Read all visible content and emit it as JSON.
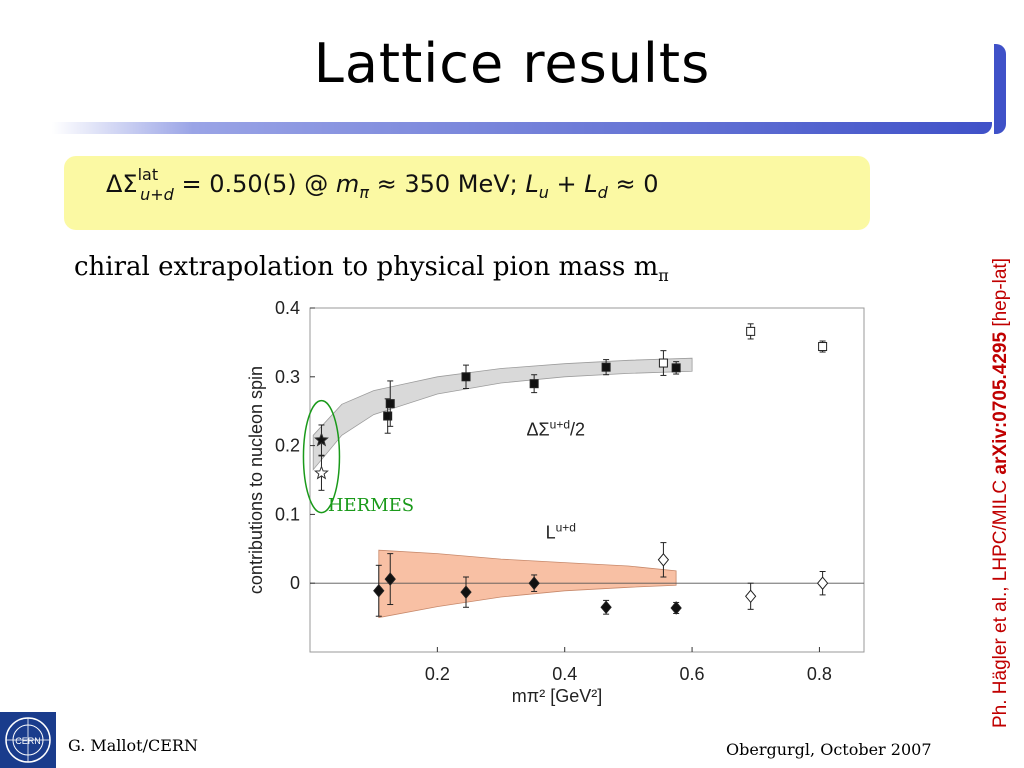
{
  "slide": {
    "title": "Lattice results",
    "formula": {
      "delta_sigma": "ΔΣ",
      "sup": "lat",
      "sub": "u+d",
      "value": "= 0.50(5) @",
      "m": "m",
      "m_sub": "π",
      "approx": "≈ 350 MeV;",
      "L1": "L",
      "L1_sub": "u",
      "plus": "+",
      "L2": "L",
      "L2_sub": "d",
      "tail": "≈ 0"
    },
    "subtitle": "chiral extrapolation to physical pion mass m",
    "subtitle_sub": "π",
    "side_ref": {
      "prefix": "Ph. Hägler et al., LHPC/MILC ",
      "arxiv": "arXiv:0705.4295",
      "suffix": " [hep-lat]"
    },
    "footer_left": "G. Mallot/CERN",
    "footer_right": "Obergurgl, October 2007",
    "logo_text": "CERN"
  },
  "colors": {
    "accent": "#3f51c8",
    "formula_bg": "#fbf9a3",
    "ref": "#c00000",
    "band_sigma": "#d9d9d9",
    "band_L": "#f8c0a4",
    "hermes": "#1a9a1a"
  },
  "chart_data": {
    "type": "scatter",
    "xlabel": "mπ² [GeV²]",
    "ylabel": "contributions to nucleon spin",
    "xlim": [
      0,
      0.87
    ],
    "ylim": [
      -0.1,
      0.4
    ],
    "x_ticks": [
      0.2,
      0.4,
      0.6,
      0.8
    ],
    "x_tick_labels": [
      "0.2",
      "0.4",
      "0.6",
      "0.8"
    ],
    "y_ticks": [
      0,
      0.1,
      0.2,
      0.3,
      0.4
    ],
    "y_tick_labels": [
      "0",
      "0.1",
      "0.2",
      "0.3",
      "0.4"
    ],
    "series": [
      {
        "name": "ΔΣu+d/2",
        "marker": "square",
        "points": [
          {
            "x": 0.122,
            "y": 0.243,
            "err": 0.025,
            "filled": true
          },
          {
            "x": 0.126,
            "y": 0.261,
            "err": 0.033,
            "filled": true
          },
          {
            "x": 0.245,
            "y": 0.3,
            "err": 0.017,
            "filled": true
          },
          {
            "x": 0.352,
            "y": 0.29,
            "err": 0.013,
            "filled": true
          },
          {
            "x": 0.465,
            "y": 0.314,
            "err": 0.011,
            "filled": true
          },
          {
            "x": 0.555,
            "y": 0.32,
            "err": 0.018,
            "filled": false
          },
          {
            "x": 0.575,
            "y": 0.313,
            "err": 0.009,
            "filled": true
          },
          {
            "x": 0.692,
            "y": 0.366,
            "err": 0.011,
            "filled": false
          },
          {
            "x": 0.805,
            "y": 0.344,
            "err": 0.008,
            "filled": false
          }
        ],
        "band": {
          "x": [
            0.005,
            0.05,
            0.1,
            0.2,
            0.3,
            0.4,
            0.5,
            0.6
          ],
          "lower": [
            0.165,
            0.215,
            0.245,
            0.275,
            0.291,
            0.3,
            0.305,
            0.308
          ],
          "upper": [
            0.215,
            0.26,
            0.28,
            0.3,
            0.312,
            0.319,
            0.324,
            0.327
          ]
        }
      },
      {
        "name": "Lu+d",
        "marker": "diamond",
        "points": [
          {
            "x": 0.108,
            "y": -0.011,
            "err": 0.037,
            "filled": true
          },
          {
            "x": 0.126,
            "y": 0.006,
            "err": 0.037,
            "filled": true
          },
          {
            "x": 0.245,
            "y": -0.013,
            "err": 0.022,
            "filled": true
          },
          {
            "x": 0.352,
            "y": 0.0,
            "err": 0.012,
            "filled": true
          },
          {
            "x": 0.465,
            "y": -0.035,
            "err": 0.01,
            "filled": true
          },
          {
            "x": 0.555,
            "y": 0.034,
            "err": 0.025,
            "filled": false
          },
          {
            "x": 0.575,
            "y": -0.036,
            "err": 0.008,
            "filled": true
          },
          {
            "x": 0.692,
            "y": -0.019,
            "err": 0.019,
            "filled": false
          },
          {
            "x": 0.805,
            "y": 0.0,
            "err": 0.017,
            "filled": false
          }
        ],
        "band": {
          "x": [
            0.108,
            0.2,
            0.3,
            0.4,
            0.5,
            0.575
          ],
          "lower": [
            -0.05,
            -0.034,
            -0.02,
            -0.011,
            -0.006,
            -0.003
          ],
          "upper": [
            0.048,
            0.043,
            0.035,
            0.03,
            0.025,
            0.018
          ]
        }
      },
      {
        "name": "HERMES",
        "marker": "star",
        "points": [
          {
            "x": 0.018,
            "y": 0.208,
            "err": 0.022,
            "filled": true
          },
          {
            "x": 0.018,
            "y": 0.16,
            "err": 0.025,
            "filled": false
          }
        ]
      }
    ],
    "annotations": [
      {
        "text": "ΔΣ",
        "sup": "u+d",
        "suffix": "/2",
        "x": 0.34,
        "y": 0.215
      },
      {
        "text": "L",
        "sup": "u+d",
        "suffix": "",
        "x": 0.37,
        "y": 0.065
      },
      {
        "text": "HERMES",
        "x": 0.028,
        "y": 0.105
      }
    ],
    "legend": "none",
    "grid": false
  }
}
